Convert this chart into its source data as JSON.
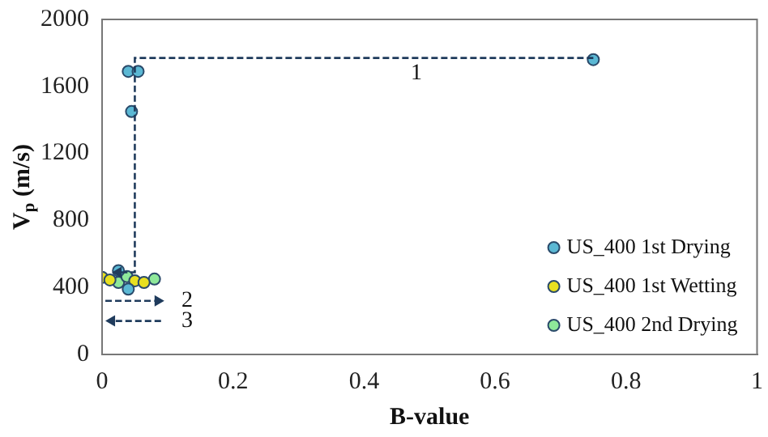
{
  "chart_data": {
    "type": "scatter",
    "xlabel": "B-value",
    "ylabel": "V$_{p}$ (m/s)",
    "xlim": [
      0,
      1
    ],
    "xticks": [
      0,
      0.2,
      0.4,
      0.6,
      0.8,
      1
    ],
    "ylim": [
      0,
      2000
    ],
    "yticks": [
      0,
      400,
      800,
      1200,
      1600,
      2000
    ],
    "grid": false,
    "legend": "bottom right",
    "marker": "circle",
    "series": [
      {
        "name": "US_400 1st Drying",
        "color": "#5bb8d4",
        "x": [
          0.75,
          0.04,
          0.055,
          0.045,
          0.025,
          0.04
        ],
        "values": [
          1760,
          1690,
          1690,
          1450,
          500,
          390
        ]
      },
      {
        "name": "US_400 1st Wetting",
        "color": "#e8e020",
        "x": [
          0,
          0.012,
          0.05,
          0.064
        ],
        "values": [
          460,
          445,
          440,
          430
        ]
      },
      {
        "name": "US_400 2nd Drying",
        "color": "#8ee89a",
        "x": [
          0.025,
          0.038,
          0.08
        ],
        "values": [
          430,
          465,
          450
        ]
      }
    ],
    "annotations": [
      "1",
      "2",
      "3"
    ]
  }
}
